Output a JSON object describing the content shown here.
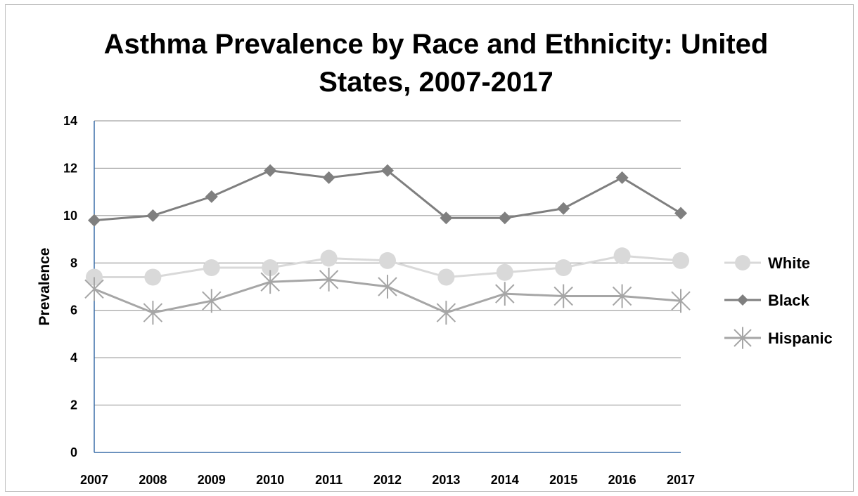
{
  "chart_data": {
    "type": "line",
    "title_lines": [
      "Asthma Prevalence by Race and Ethnicity: United",
      "States, 2007-2017"
    ],
    "xlabel": "",
    "ylabel": "Prevalence",
    "categories": [
      "2007",
      "2008",
      "2009",
      "2010",
      "2011",
      "2012",
      "2013",
      "2014",
      "2015",
      "2016",
      "2017"
    ],
    "ylim": [
      0,
      14
    ],
    "yticks": [
      "0",
      "2",
      "4",
      "6",
      "8",
      "10",
      "12",
      "14"
    ],
    "grid": true,
    "legend_position": "right",
    "series": [
      {
        "name": "White",
        "marker": "circle",
        "color": "#d9d9d9",
        "values": [
          7.4,
          7.4,
          7.8,
          7.8,
          8.2,
          8.1,
          7.4,
          7.6,
          7.8,
          8.3,
          8.1
        ]
      },
      {
        "name": "Black",
        "marker": "diamond",
        "color": "#7f7f7f",
        "values": [
          9.8,
          10.0,
          10.8,
          11.9,
          11.6,
          11.9,
          9.9,
          9.9,
          10.3,
          11.6,
          10.1
        ]
      },
      {
        "name": "Hispanic",
        "marker": "star",
        "color": "#a6a6a6",
        "values": [
          6.9,
          5.9,
          6.4,
          7.2,
          7.3,
          7.0,
          5.9,
          6.7,
          6.6,
          6.6,
          6.4
        ]
      }
    ]
  }
}
